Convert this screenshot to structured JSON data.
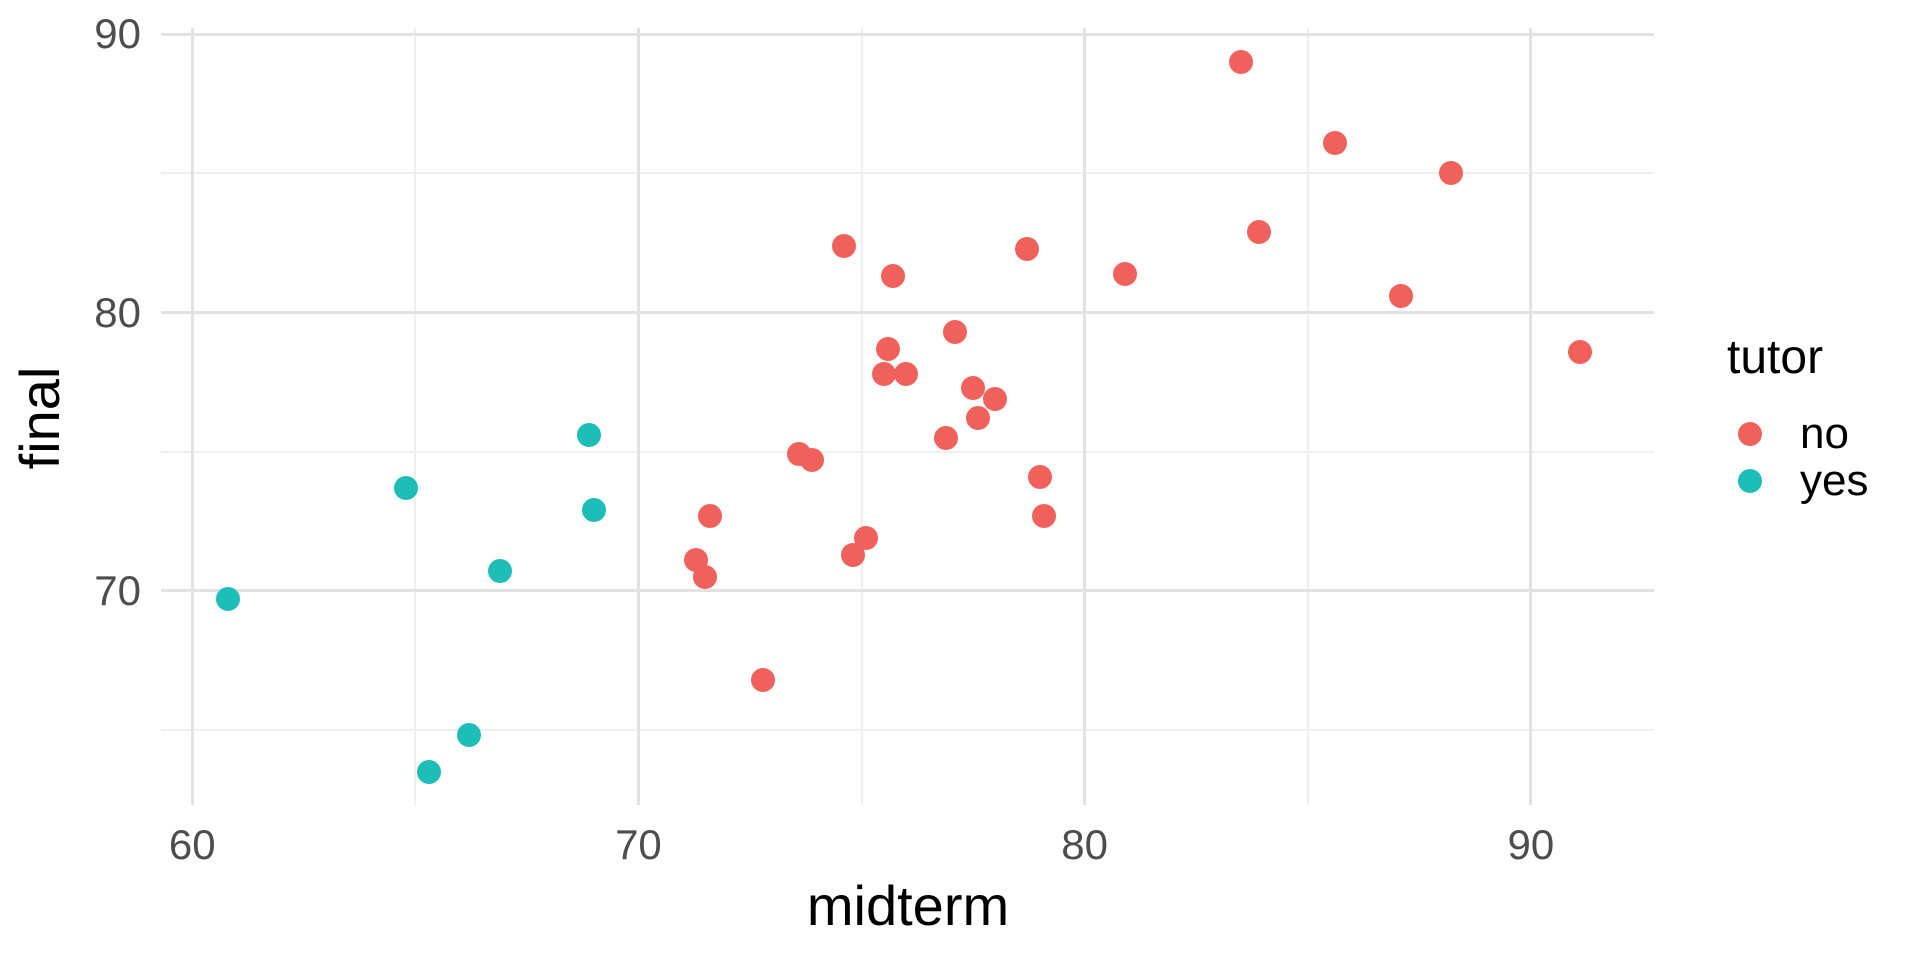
{
  "colors": {
    "background": "#FFFFFF",
    "grid_major": "#E2E2E2",
    "grid_minor": "#EFEFEF",
    "tick_label_text": "#4D4D4D",
    "title_text": "#000000",
    "series_no": "#F0615C",
    "series_yes": "#1DBDB8"
  },
  "chart_data": {
    "type": "scatter",
    "title": "",
    "xlabel": "midterm",
    "ylabel": "final",
    "xlim": [
      59.3,
      92.76
    ],
    "ylim": [
      62.3,
      90.23
    ],
    "x_major_ticks": [
      60,
      70,
      80,
      90
    ],
    "x_minor_ticks": [
      65,
      75,
      85
    ],
    "y_major_ticks": [
      70,
      80,
      90
    ],
    "y_minor_ticks": [
      65,
      75,
      85
    ],
    "grid": "major+minor",
    "legend": {
      "title": "tutor",
      "position": "right",
      "entries": [
        {
          "label": "no",
          "color": "#F0615C"
        },
        {
          "label": "yes",
          "color": "#1DBDB8"
        }
      ]
    },
    "series": [
      {
        "name": "no",
        "color": "#F0615C",
        "points": [
          [
            71.3,
            71.1
          ],
          [
            71.5,
            70.5
          ],
          [
            71.6,
            72.7
          ],
          [
            72.8,
            66.8
          ],
          [
            73.6,
            74.9
          ],
          [
            73.9,
            74.7
          ],
          [
            74.6,
            82.4
          ],
          [
            74.8,
            71.3
          ],
          [
            75.1,
            71.9
          ],
          [
            75.5,
            77.8
          ],
          [
            75.6,
            78.7
          ],
          [
            75.7,
            81.3
          ],
          [
            76.0,
            77.8
          ],
          [
            76.9,
            75.5
          ],
          [
            77.1,
            79.3
          ],
          [
            77.5,
            77.3
          ],
          [
            77.6,
            76.2
          ],
          [
            78.0,
            76.9
          ],
          [
            78.7,
            82.3
          ],
          [
            79.0,
            74.1
          ],
          [
            79.1,
            72.7
          ],
          [
            80.9,
            81.4
          ],
          [
            83.5,
            89.0
          ],
          [
            83.9,
            82.9
          ],
          [
            85.6,
            86.1
          ],
          [
            87.1,
            80.6
          ],
          [
            88.2,
            85.0
          ],
          [
            91.1,
            78.6
          ]
        ]
      },
      {
        "name": "yes",
        "color": "#1DBDB8",
        "points": [
          [
            60.8,
            69.7
          ],
          [
            64.8,
            73.7
          ],
          [
            65.3,
            63.5
          ],
          [
            66.2,
            64.8
          ],
          [
            66.9,
            70.7
          ],
          [
            68.9,
            75.6
          ],
          [
            69.0,
            72.9
          ]
        ]
      }
    ]
  }
}
